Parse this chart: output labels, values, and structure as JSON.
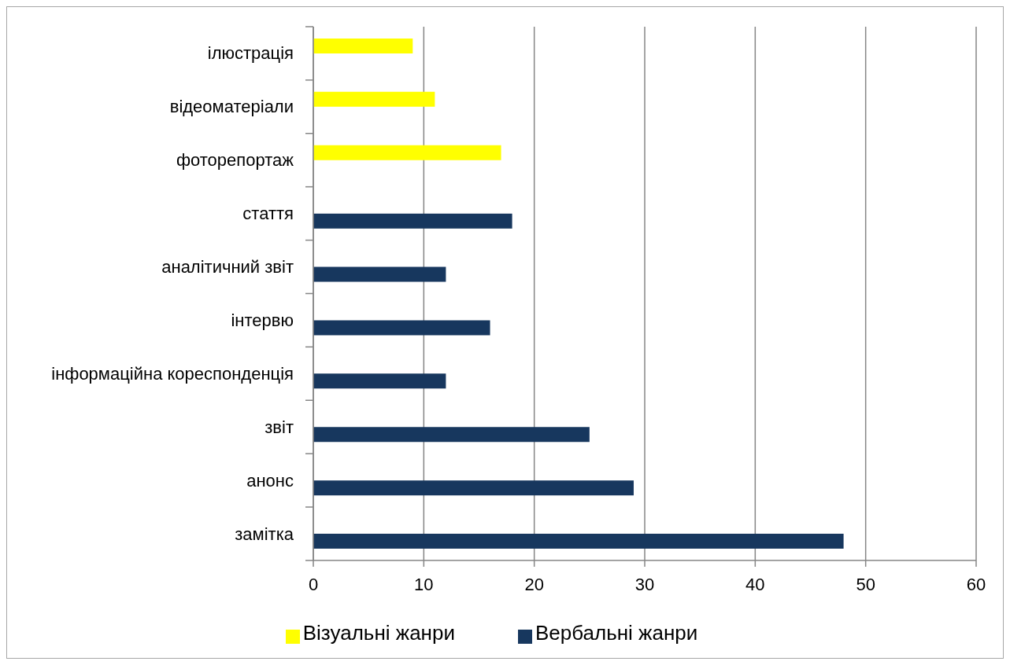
{
  "chart_data": {
    "type": "bar",
    "orientation": "horizontal",
    "categories": [
      "ілюстрація",
      "відеоматеріали",
      "фоторепортаж",
      "стаття",
      "аналітичний звіт",
      "інтервю",
      "інформаційна кореспонденція",
      "звіт",
      "анонс",
      "замітка"
    ],
    "series": [
      {
        "name": "Візуальні жанри",
        "color": "#ffff00",
        "values": [
          9,
          11,
          17,
          null,
          null,
          null,
          null,
          null,
          null,
          null
        ]
      },
      {
        "name": "Вербальні жанри",
        "color": "#17375e",
        "values": [
          null,
          null,
          null,
          18,
          12,
          16,
          12,
          25,
          29,
          48
        ]
      }
    ],
    "xlim": [
      0,
      60
    ],
    "xticks": [
      0,
      10,
      20,
      30,
      40,
      50,
      60
    ],
    "grid": "x",
    "legend": "bottom"
  }
}
